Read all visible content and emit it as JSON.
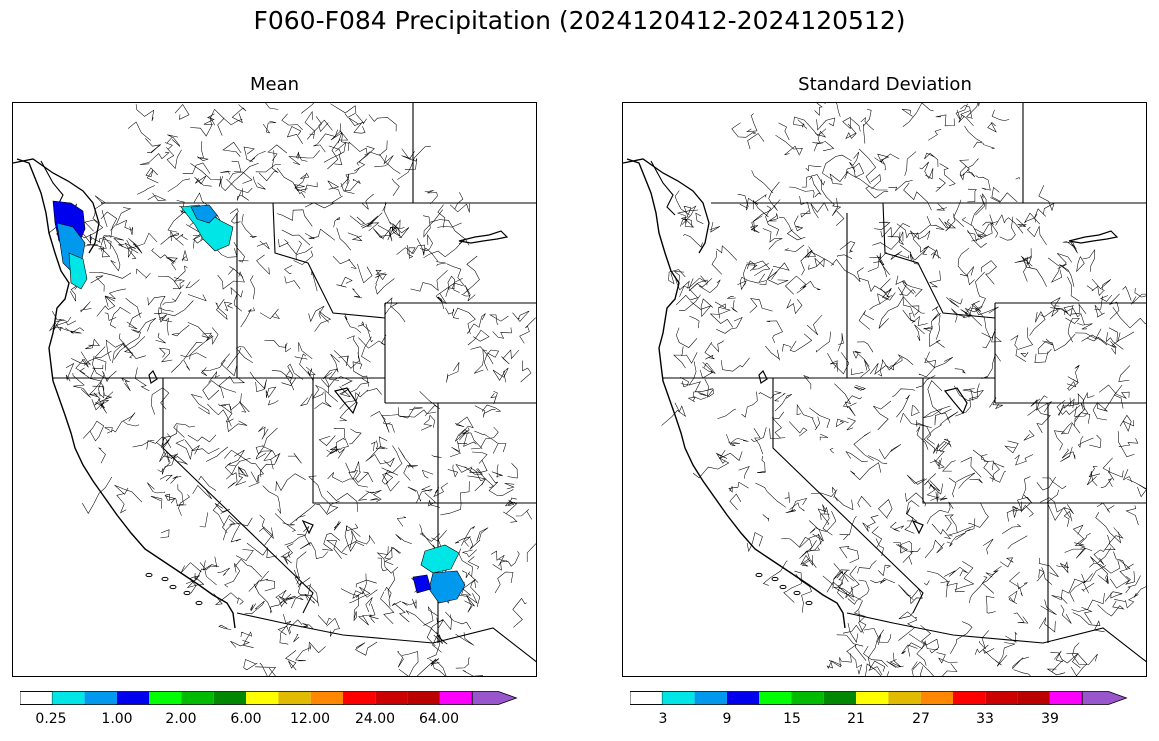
{
  "figure": {
    "title": "F060-F084 Precipitation (2024120412-2024120512)"
  },
  "panels": [
    {
      "title": "Mean",
      "colorbar": {
        "colors": [
          "#ffffff",
          "#00e5e5",
          "#0099ee",
          "#0000ee",
          "#00ff00",
          "#00bb00",
          "#008800",
          "#ffff00",
          "#e0bb00",
          "#ff8800",
          "#ff0000",
          "#cc0000",
          "#bb0000",
          "#ff00ff",
          "#9955cc"
        ],
        "tick_labels": [
          "0.25",
          "1.00",
          "2.00",
          "6.00",
          "12.00",
          "24.00",
          "64.00"
        ]
      },
      "shaded_regions": [
        {
          "area": "Northern Cascades / BC border",
          "color": "#00e5e5"
        },
        {
          "area": "Northern Cascades / BC border",
          "color": "#0099ee"
        },
        {
          "area": "Olympic Peninsula",
          "color": "#0000ee"
        },
        {
          "area": "Western Washington coast",
          "color": "#0099ee"
        },
        {
          "area": "Western Washington coast",
          "color": "#00e5e5"
        },
        {
          "area": "Central Arizona (Mogollon Rim)",
          "color": "#00e5e5"
        },
        {
          "area": "Central Arizona (Mogollon Rim)",
          "color": "#0099ee"
        },
        {
          "area": "Central Arizona (Mogollon Rim)",
          "color": "#0000ee"
        }
      ]
    },
    {
      "title": "Standard Deviation",
      "colorbar": {
        "colors": [
          "#ffffff",
          "#00e5e5",
          "#0099ee",
          "#0000ee",
          "#00ff00",
          "#00bb00",
          "#008800",
          "#ffff00",
          "#e0bb00",
          "#ff8800",
          "#ff0000",
          "#cc0000",
          "#bb0000",
          "#ff00ff",
          "#9955cc"
        ],
        "tick_labels": [
          "3",
          "9",
          "15",
          "21",
          "27",
          "33",
          "39"
        ]
      },
      "shaded_regions": []
    }
  ]
}
